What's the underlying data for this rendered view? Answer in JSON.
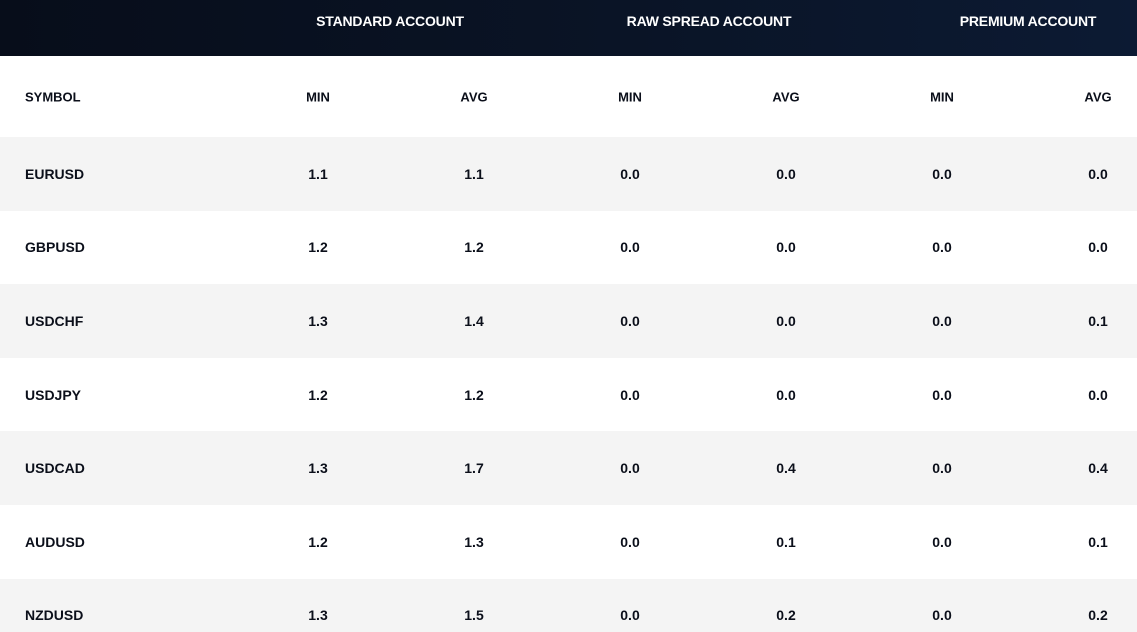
{
  "groups": [
    {
      "label": "STANDARD ACCOUNT"
    },
    {
      "label": "RAW SPREAD ACCOUNT"
    },
    {
      "label": "PREMIUM ACCOUNT"
    }
  ],
  "columns": {
    "symbol": "SYMBOL",
    "min": "MIN",
    "avg": "AVG"
  },
  "rows": [
    {
      "symbol": "EURUSD",
      "values": [
        "1.1",
        "1.1",
        "0.0",
        "0.0",
        "0.0",
        "0.0"
      ]
    },
    {
      "symbol": "GBPUSD",
      "values": [
        "1.2",
        "1.2",
        "0.0",
        "0.0",
        "0.0",
        "0.0"
      ]
    },
    {
      "symbol": "USDCHF",
      "values": [
        "1.3",
        "1.4",
        "0.0",
        "0.0",
        "0.0",
        "0.1"
      ]
    },
    {
      "symbol": "USDJPY",
      "values": [
        "1.2",
        "1.2",
        "0.0",
        "0.0",
        "0.0",
        "0.0"
      ]
    },
    {
      "symbol": "USDCAD",
      "values": [
        "1.3",
        "1.7",
        "0.0",
        "0.4",
        "0.0",
        "0.4"
      ]
    },
    {
      "symbol": "AUDUSD",
      "values": [
        "1.2",
        "1.3",
        "0.0",
        "0.1",
        "0.0",
        "0.1"
      ]
    },
    {
      "symbol": "NZDUSD",
      "values": [
        "1.3",
        "1.5",
        "0.0",
        "0.2",
        "0.0",
        "0.2"
      ]
    }
  ]
}
